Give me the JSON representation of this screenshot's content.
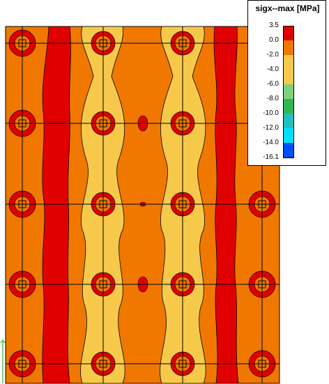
{
  "legend": {
    "title": "sigx--max [MPa]",
    "levels": [
      {
        "label": "3.5",
        "color": "#e00000"
      },
      {
        "label": "0.0",
        "color": "#f07800"
      },
      {
        "label": "-2.0",
        "color": "#f7c94a"
      },
      {
        "label": "-4.0",
        "color": "#f7c94a"
      },
      {
        "label": "-6.0",
        "color": "#7fd07f"
      },
      {
        "label": "-8.0",
        "color": "#2fb84f"
      },
      {
        "label": "-10.0",
        "color": "#20c0c0"
      },
      {
        "label": "-12.0",
        "color": "#00e0ff"
      },
      {
        "label": "-14.0",
        "color": "#0050ff"
      },
      {
        "label": "-16.1",
        "color": "#0000b0"
      }
    ]
  },
  "colors": {
    "tension": "#e00000",
    "zero": "#f07800",
    "compression": "#f7c94a",
    "grid": "#000000"
  }
}
